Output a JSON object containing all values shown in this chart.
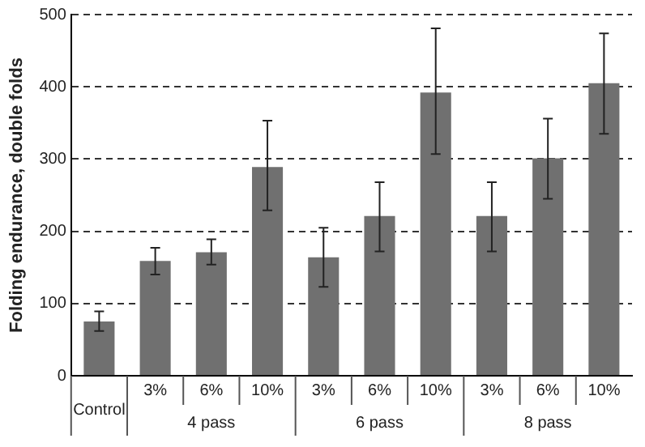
{
  "chart_data": {
    "type": "bar",
    "ylabel": "Folding endurance, double folds",
    "categories": [
      "Control",
      "3%",
      "6%",
      "10%",
      "3%",
      "6%",
      "10%",
      "3%",
      "6%",
      "10%"
    ],
    "values": [
      75,
      159,
      171,
      289,
      164,
      221,
      392,
      221,
      301,
      405
    ],
    "errors": [
      [
        62,
        89
      ],
      [
        140,
        177
      ],
      [
        154,
        189
      ],
      [
        229,
        353
      ],
      [
        123,
        205
      ],
      [
        172,
        268
      ],
      [
        307,
        481
      ],
      [
        172,
        268
      ],
      [
        245,
        356
      ],
      [
        335,
        474
      ]
    ],
    "color": "#707070",
    "annotations": [
      "4 pass",
      "6 pass",
      "8 pass"
    ],
    "ylim": [
      0,
      500
    ],
    "yticks": [
      0,
      100,
      200,
      300,
      400,
      500
    ],
    "grid": "y",
    "legend": false
  }
}
